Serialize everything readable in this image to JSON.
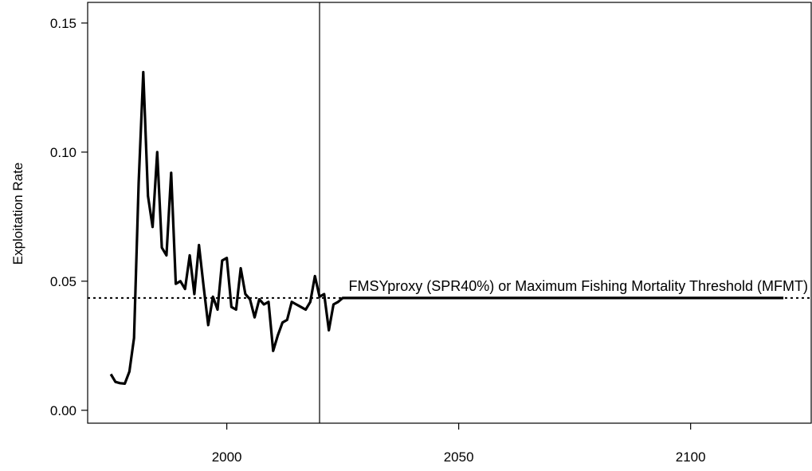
{
  "chart_data": {
    "type": "line",
    "title": "",
    "xlabel": "",
    "ylabel": "Exploitation Rate",
    "xlim": [
      1970,
      2126
    ],
    "ylim": [
      -0.005,
      0.158
    ],
    "x_ticks": [
      2000,
      2050,
      2100
    ],
    "y_ticks": [
      0.0,
      0.05,
      0.1,
      0.15
    ],
    "x_tick_labels": [
      "2000",
      "2050",
      "2100"
    ],
    "y_tick_labels": [
      "0.00",
      "0.05",
      "0.10",
      "0.15"
    ],
    "grid": false,
    "series": [
      {
        "x": [
          1975,
          1976,
          1977,
          1978,
          1979,
          1980,
          1981,
          1982,
          1983,
          1984,
          1985,
          1986,
          1987,
          1988,
          1989,
          1990,
          1991,
          1992,
          1993,
          1994,
          1995,
          1996,
          1997,
          1998,
          1999,
          2000,
          2001,
          2002,
          2003,
          2004,
          2005,
          2006,
          2007,
          2008,
          2009,
          2010,
          2011,
          2012,
          2013,
          2014,
          2015,
          2016,
          2017,
          2018,
          2019,
          2020,
          2021,
          2022,
          2023,
          2024,
          2025,
          2030,
          2040,
          2050,
          2060,
          2070,
          2080,
          2090,
          2100,
          2110,
          2120
        ],
        "values": [
          0.014,
          0.011,
          0.0105,
          0.0103,
          0.015,
          0.028,
          0.088,
          0.131,
          0.083,
          0.071,
          0.1,
          0.063,
          0.06,
          0.092,
          0.049,
          0.05,
          0.047,
          0.06,
          0.045,
          0.064,
          0.048,
          0.033,
          0.044,
          0.039,
          0.058,
          0.059,
          0.04,
          0.039,
          0.055,
          0.045,
          0.043,
          0.036,
          0.043,
          0.041,
          0.042,
          0.023,
          0.029,
          0.034,
          0.035,
          0.042,
          0.041,
          0.04,
          0.039,
          0.042,
          0.052,
          0.044,
          0.045,
          0.031,
          0.041,
          0.042,
          0.0435,
          0.0435,
          0.0435,
          0.0435,
          0.0435,
          0.0435,
          0.0435,
          0.0435,
          0.0435,
          0.0435,
          0.0435
        ]
      }
    ],
    "reference_line": {
      "y": 0.0435,
      "style": "dotted",
      "label": "FMSYproxy (SPR40%) or Maximum Fishing Mortality Threshold (MFMT)"
    },
    "vertical_line": {
      "x": 2020
    }
  }
}
